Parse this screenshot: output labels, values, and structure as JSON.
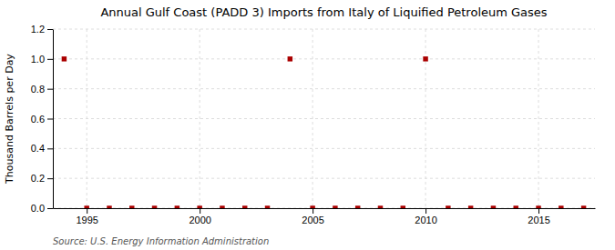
{
  "chart_data": {
    "type": "scatter",
    "title": "Annual Gulf Coast (PADD 3) Imports from Italy of Liquified Petroleum Gases",
    "y_label": "Thousand Barrels per Day",
    "annotations": [
      "Source: U.S. Energy Information Administration"
    ],
    "x": [
      1994,
      1995,
      1996,
      1997,
      1998,
      1999,
      2000,
      2001,
      2002,
      2003,
      2004,
      2005,
      2006,
      2007,
      2008,
      2009,
      2010,
      2011,
      2012,
      2013,
      2014,
      2015,
      2016,
      2017
    ],
    "values": [
      1,
      0,
      0,
      0,
      0,
      0,
      0,
      0,
      0,
      0,
      1,
      0,
      0,
      0,
      0,
      0,
      1,
      0,
      0,
      0,
      0,
      0,
      0,
      0
    ],
    "color": "#aa0000",
    "marker": "square",
    "xlim": [
      1993.5,
      2017.5
    ],
    "ylim": [
      0.0,
      1.2
    ],
    "xticks": [
      1995,
      2000,
      2005,
      2010,
      2015
    ],
    "yticks": [
      {
        "value": 0,
        "label": "0.0"
      },
      0.2,
      0.4,
      0.6,
      0.8,
      {
        "value": 1,
        "label": "1.0"
      },
      1.2
    ],
    "grid": true
  }
}
